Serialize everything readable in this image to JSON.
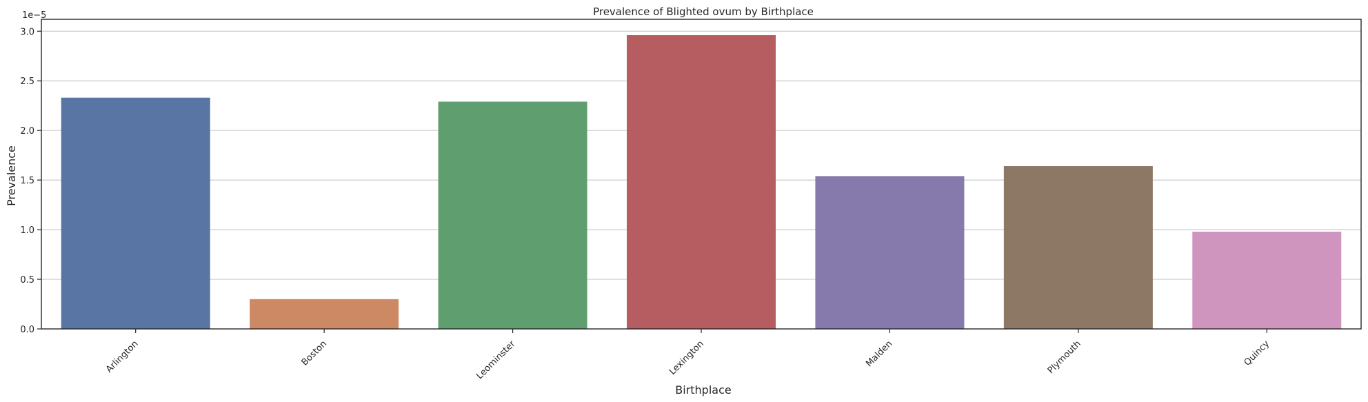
{
  "chart_data": {
    "type": "bar",
    "title": "Prevalence of Blighted ovum by Birthplace",
    "xlabel": "Birthplace",
    "ylabel": "Prevalence",
    "offset_label": "1e−5",
    "categories": [
      "Arlington",
      "Boston",
      "Leominster",
      "Lexington",
      "Malden",
      "Plymouth",
      "Quincy"
    ],
    "values": [
      2.33,
      0.3,
      2.29,
      2.96,
      1.54,
      1.64,
      0.98
    ],
    "value_scale": "1e-5",
    "ylim": [
      0,
      3.12
    ],
    "yticks": [
      "0.0",
      "0.5",
      "1.0",
      "1.5",
      "2.0",
      "2.5",
      "3.0"
    ],
    "colors": [
      "#5875a4",
      "#cc8963",
      "#5f9e6e",
      "#b55d60",
      "#857aab",
      "#8d7866",
      "#d095bf"
    ],
    "grid": "horizontal"
  }
}
